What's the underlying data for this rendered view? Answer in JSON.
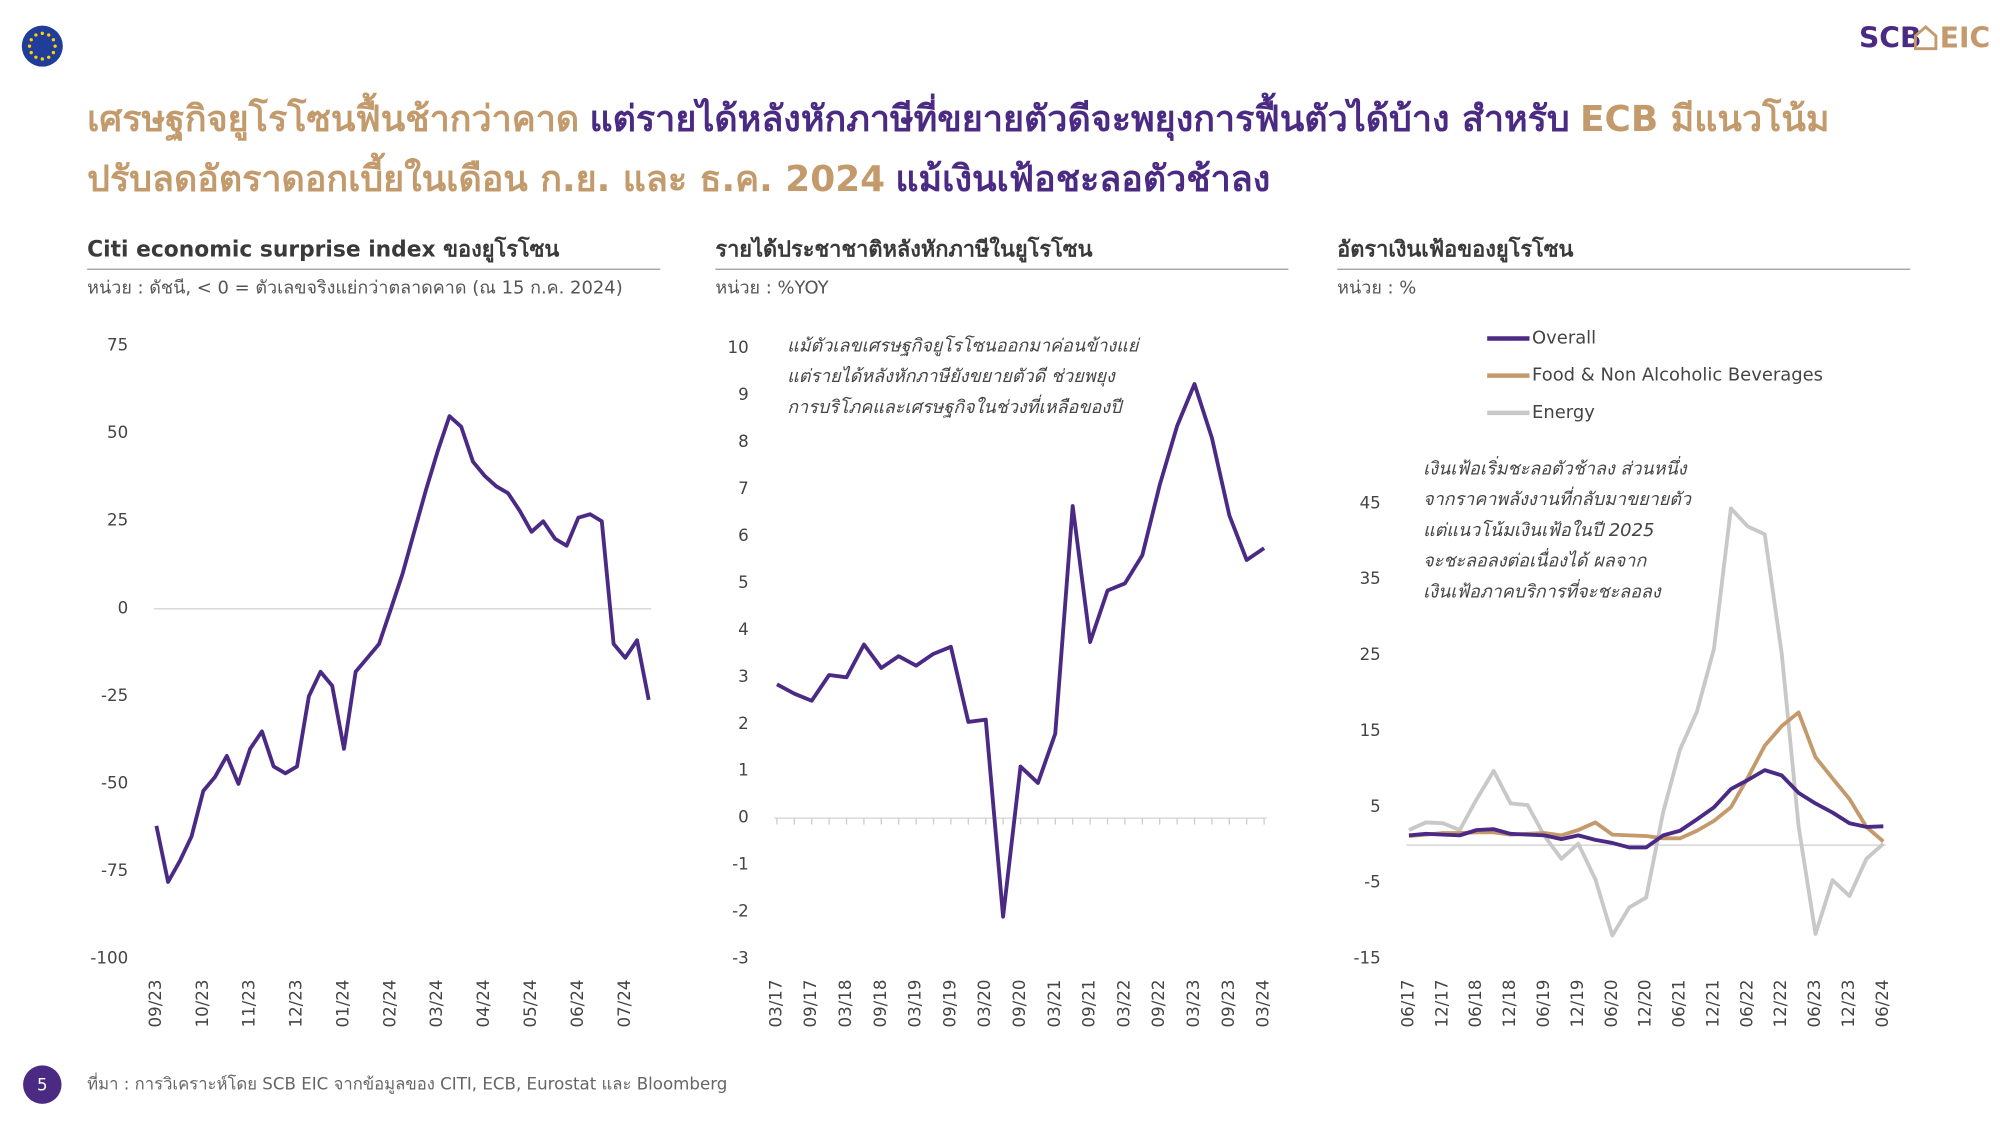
{
  "header": {
    "logo_left": "SCB",
    "logo_right": "EIC",
    "title_lines": [
      [
        {
          "text": "เศรษฐกิจยูโรโซนฟื้นช้ากว่าคาด",
          "color": "#c29a6b"
        },
        {
          "text": "แต่รายได้หลังหักภาษีที่ขยายตัวดีจะพยุงการฟื้นตัวได้บ้าง สำหรับ",
          "color": "#4a2a82"
        },
        {
          "text": "ECB มีแนวโน้ม",
          "color": "#c29a6b"
        }
      ],
      [
        {
          "text": "ปรับลดอัตราดอกเบี้ยในเดือน ก.ย. และ ธ.ค. 2024",
          "color": "#c29a6b"
        },
        {
          "text": "แม้เงินเฟ้อชะลอตัวช้าลง",
          "color": "#4a2a82"
        }
      ]
    ]
  },
  "chart_data": [
    {
      "type": "line",
      "title": "Citi economic surprise index ของยูโรโซน",
      "subtitle": "หน่วย : ดัชนี, < 0 = ตัวเลขจริงแย่กว่าตลาดคาด (ณ 15 ก.ค. 2024)",
      "categories": [
        "09/23",
        null,
        null,
        null,
        "10/23",
        null,
        null,
        null,
        "11/23",
        null,
        null,
        null,
        "12/23",
        null,
        null,
        null,
        "01/24",
        null,
        null,
        null,
        "02/24",
        null,
        null,
        null,
        "03/24",
        null,
        null,
        null,
        "04/24",
        null,
        null,
        null,
        "05/24",
        null,
        null,
        null,
        "06/24",
        null,
        null,
        null,
        "07/24",
        null,
        null
      ],
      "values": [
        -62,
        -78,
        -72,
        -65,
        -52,
        -48,
        -42,
        -50,
        -40,
        -35,
        -45,
        -47,
        -45,
        -25,
        -18,
        -22,
        -40,
        -18,
        -14,
        -10,
        0,
        10,
        22,
        34,
        45,
        55,
        52,
        42,
        38,
        35,
        33,
        28,
        22,
        25,
        20,
        18,
        26,
        27,
        25,
        -10,
        -14,
        -9,
        -26
      ],
      "color": "#4b2a85",
      "ylim": [
        -100,
        75
      ],
      "yticks": [
        -100,
        -75,
        -50,
        -25,
        0,
        25,
        50,
        75
      ]
    },
    {
      "type": "line",
      "title": "รายได้ประชาชาติหลังหักภาษีในยูโรโซน",
      "subtitle": "หน่วย : %YOY",
      "annotation": [
        "แม้ตัวเลขเศรษฐกิจยูโรโซนออกมาค่อนข้างแย่",
        "แต่รายได้หลังหักภาษียังขยายตัวดี ช่วยพยุง",
        "การบริโภคและเศรษฐกิจในช่วงที่เหลือของปี"
      ],
      "categories": [
        "03/17",
        null,
        "09/17",
        null,
        "03/18",
        null,
        "09/18",
        null,
        "03/19",
        null,
        "09/19",
        null,
        "03/20",
        null,
        "09/20",
        null,
        "03/21",
        null,
        "09/21",
        null,
        "03/22",
        null,
        "09/22",
        null,
        "03/23",
        null,
        "09/23",
        null,
        "03/24"
      ],
      "values": [
        2.85,
        2.65,
        2.5,
        3.05,
        3.0,
        3.7,
        3.2,
        3.45,
        3.25,
        3.5,
        3.65,
        2.05,
        2.1,
        -2.1,
        1.1,
        0.75,
        1.8,
        6.65,
        3.75,
        4.85,
        5.0,
        5.6,
        7.1,
        8.35,
        9.25,
        8.1,
        6.45,
        5.5,
        5.75
      ],
      "color": "#4b2a85",
      "ylim": [
        -3,
        10
      ],
      "yticks": [
        -3,
        -2,
        -1,
        0,
        1,
        2,
        3,
        4,
        5,
        6,
        7,
        8,
        9,
        10
      ]
    },
    {
      "type": "line",
      "title": "อัตราเงินเฟ้อของยูโรโซน",
      "subtitle": "หน่วย : %",
      "annotation": [
        "เงินเฟ้อเริ่มชะลอตัวช้าลง ส่วนหนึ่ง",
        "จากราคาพลังงานที่กลับมาขยายตัว",
        "แต่แนวโน้มเงินเฟ้อในปี 2025",
        "จะชะลอลงต่อเนื่องได้ ผลจาก",
        "เงินเฟ้อภาคบริการที่จะชะลอลง"
      ],
      "categories": [
        "06/17",
        null,
        "12/17",
        null,
        "06/18",
        null,
        "12/18",
        null,
        "06/19",
        null,
        "12/19",
        null,
        "06/20",
        null,
        "12/20",
        null,
        "06/21",
        null,
        "12/21",
        null,
        "06/22",
        null,
        "12/22",
        null,
        "06/23",
        null,
        "12/23",
        null,
        "06/24"
      ],
      "series": [
        {
          "name": "Overall",
          "color": "#4b2a85",
          "values": [
            1.3,
            1.5,
            1.4,
            1.3,
            2.0,
            2.1,
            1.5,
            1.4,
            1.3,
            0.8,
            1.3,
            0.7,
            0.3,
            -0.3,
            -0.3,
            1.3,
            1.9,
            3.4,
            5.0,
            7.4,
            8.6,
            9.9,
            9.2,
            6.9,
            5.5,
            4.3,
            2.9,
            2.4,
            2.5
          ]
        },
        {
          "name": "Food & Non Alcoholic Beverages",
          "color": "#c49a6c",
          "values": [
            1.2,
            1.4,
            1.6,
            1.6,
            1.7,
            1.7,
            1.4,
            1.5,
            1.6,
            1.3,
            2.0,
            3.0,
            1.4,
            1.3,
            1.2,
            0.9,
            0.9,
            1.9,
            3.2,
            5.0,
            8.9,
            13.1,
            15.7,
            17.5,
            11.6,
            8.8,
            6.1,
            2.4,
            0.5
          ]
        },
        {
          "name": "Energy",
          "color": "#c8c8c8",
          "values": [
            2.0,
            3.0,
            2.9,
            2.0,
            6.1,
            9.8,
            5.5,
            5.3,
            1.2,
            -1.8,
            0.2,
            -4.5,
            -11.9,
            -8.2,
            -6.9,
            4.3,
            12.6,
            17.6,
            25.9,
            44.4,
            42.0,
            41.0,
            25.3,
            2.5,
            -11.7,
            -4.6,
            -6.7,
            -1.8,
            0.2
          ]
        }
      ],
      "ylim": [
        -15,
        50
      ],
      "yticks": [
        -15,
        -5,
        5,
        15,
        25,
        35,
        45
      ]
    }
  ],
  "footer": {
    "page": "5",
    "source": "ที่มา : การวิเคราะห์โดย SCB EIC จากข้อมูลของ CITI, ECB, Eurostat และ Bloomberg"
  }
}
